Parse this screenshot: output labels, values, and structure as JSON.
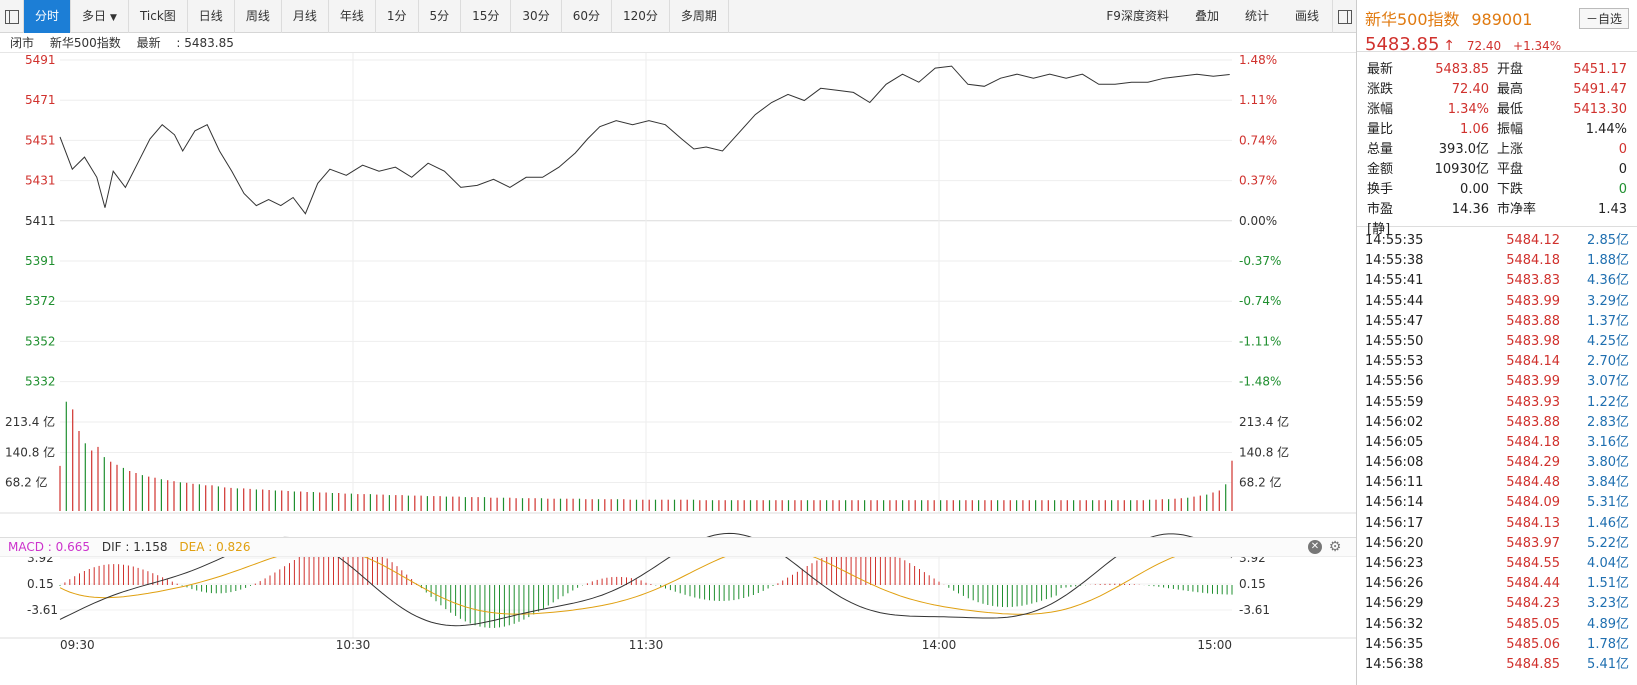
{
  "toolbar": {
    "items": [
      "分时",
      "多日",
      "Tick图",
      "日线",
      "周线",
      "月线",
      "年线",
      "1分",
      "5分",
      "15分",
      "30分",
      "60分",
      "120分",
      "多周期"
    ],
    "right_items": [
      "F9深度资料",
      "叠加",
      "统计",
      "画线"
    ]
  },
  "info": {
    "status": "闭市",
    "index_name": "新华500指数",
    "latest_label": "最新",
    "latest_value": "5483.85"
  },
  "chart_data": {
    "type": "line",
    "price_axis": {
      "ticks": [
        "5491",
        "5471",
        "5451",
        "5431",
        "5411",
        "5391",
        "5372",
        "5352",
        "5332"
      ],
      "pct_ticks": [
        "1.48%",
        "1.11%",
        "0.74%",
        "0.37%",
        "0.00%",
        "-0.37%",
        "-0.74%",
        "-1.11%",
        "-1.48%"
      ],
      "ylim": [
        5332,
        5491
      ],
      "prev_close": 5411
    },
    "volume_axis": {
      "ticks": [
        "213.4 亿",
        "140.8 亿",
        "68.2 亿"
      ],
      "unit": "亿"
    },
    "macd_axis": {
      "ticks": [
        "3.92",
        "0.15",
        "-3.61"
      ]
    },
    "time_ticks": [
      "09:30",
      "10:30",
      "11:30",
      "14:00",
      "15:00"
    ],
    "price_series": [
      [
        0,
        5453
      ],
      [
        0.03,
        5437
      ],
      [
        0.06,
        5443
      ],
      [
        0.09,
        5433
      ],
      [
        0.11,
        5418
      ],
      [
        0.13,
        5436
      ],
      [
        0.16,
        5428
      ],
      [
        0.19,
        5440
      ],
      [
        0.22,
        5452
      ],
      [
        0.25,
        5459
      ],
      [
        0.28,
        5454
      ],
      [
        0.3,
        5446
      ],
      [
        0.33,
        5456
      ],
      [
        0.36,
        5459
      ],
      [
        0.39,
        5446
      ],
      [
        0.42,
        5436
      ],
      [
        0.45,
        5425
      ],
      [
        0.48,
        5419
      ],
      [
        0.51,
        5422
      ],
      [
        0.54,
        5419
      ],
      [
        0.57,
        5423
      ],
      [
        0.6,
        5415
      ],
      [
        0.63,
        5430
      ],
      [
        0.66,
        5437
      ],
      [
        0.7,
        5434
      ],
      [
        0.74,
        5439
      ],
      [
        0.78,
        5436
      ],
      [
        0.82,
        5438
      ],
      [
        0.86,
        5433
      ],
      [
        0.9,
        5440
      ],
      [
        0.94,
        5436
      ],
      [
        0.98,
        5428
      ],
      [
        1.02,
        5429
      ],
      [
        1.06,
        5432
      ],
      [
        1.1,
        5428
      ],
      [
        1.14,
        5433
      ],
      [
        1.18,
        5433
      ],
      [
        1.22,
        5438
      ],
      [
        1.26,
        5445
      ],
      [
        1.29,
        5452
      ],
      [
        1.32,
        5458
      ],
      [
        1.36,
        5461
      ],
      [
        1.4,
        5459
      ],
      [
        1.44,
        5461
      ],
      [
        1.48,
        5459
      ],
      [
        1.52,
        5452
      ],
      [
        1.55,
        5447
      ],
      [
        1.58,
        5448
      ],
      [
        1.62,
        5446
      ],
      [
        1.66,
        5455
      ],
      [
        1.7,
        5464
      ],
      [
        1.74,
        5470
      ],
      [
        1.78,
        5474
      ],
      [
        1.82,
        5471
      ],
      [
        1.86,
        5477
      ],
      [
        1.9,
        5476
      ],
      [
        1.94,
        5475
      ],
      [
        1.98,
        5470
      ],
      [
        2.02,
        5479
      ],
      [
        2.06,
        5484
      ],
      [
        2.1,
        5480
      ],
      [
        2.14,
        5487
      ],
      [
        2.18,
        5488
      ],
      [
        2.22,
        5479
      ],
      [
        2.26,
        5478
      ],
      [
        2.3,
        5482
      ],
      [
        2.34,
        5484
      ],
      [
        2.38,
        5482
      ],
      [
        2.42,
        5484
      ],
      [
        2.46,
        5482
      ],
      [
        2.5,
        5484
      ],
      [
        2.54,
        5479
      ],
      [
        2.58,
        5479
      ],
      [
        2.62,
        5480
      ],
      [
        2.66,
        5480
      ],
      [
        2.7,
        5482
      ],
      [
        2.74,
        5483
      ],
      [
        2.78,
        5484
      ],
      [
        2.82,
        5483
      ],
      [
        2.86,
        5483.85
      ]
    ],
    "volume_series": [
      88,
      213,
      198,
      156,
      132,
      118,
      125,
      105,
      96,
      90,
      84,
      78,
      74,
      70,
      67,
      65,
      62,
      60,
      58,
      56,
      55,
      53,
      52,
      50,
      50,
      48,
      46,
      45,
      44,
      44,
      43,
      42,
      42,
      41,
      40,
      40,
      39,
      38,
      38,
      37,
      37,
      36,
      36,
      35,
      35,
      34,
      34,
      33,
      33,
      33,
      32,
      32,
      31,
      31,
      31,
      30,
      30,
      30,
      29,
      29,
      29,
      28,
      28,
      28,
      27,
      27,
      27,
      27,
      26,
      26,
      26,
      26,
      25,
      25,
      25,
      25,
      25,
      24,
      24,
      24,
      24,
      24,
      24,
      23,
      23,
      23,
      23,
      23,
      23,
      23,
      22,
      22,
      22,
      22,
      22,
      22,
      22,
      22,
      22,
      22,
      22,
      21,
      21,
      21,
      21,
      21,
      21,
      21,
      21,
      21,
      21,
      21,
      21,
      21,
      21,
      21,
      21,
      21,
      21,
      21,
      21,
      21,
      21,
      21,
      21,
      21,
      21,
      21,
      21,
      21,
      21,
      21,
      21,
      21,
      21,
      21,
      21,
      21,
      21,
      21,
      21,
      21,
      21,
      21,
      21,
      21,
      21,
      21,
      21,
      21,
      21,
      21,
      21,
      21,
      21,
      21,
      21,
      21,
      21,
      21,
      21,
      21,
      21,
      21,
      21,
      21,
      21,
      21,
      21,
      21,
      21,
      21,
      22,
      22,
      23,
      23,
      24,
      25,
      26,
      28,
      30,
      32,
      36,
      40,
      52,
      98
    ],
    "macd": {
      "label": "MACD",
      "value": "0.665",
      "dif_label": "DIF",
      "dif": "1.158",
      "dea_label": "DEA",
      "dea": "0.826"
    },
    "colors": {
      "up": "#d0312d",
      "down": "#1f8f2f",
      "price_line": "#333333",
      "dif": "#333333",
      "dea": "#e0a010"
    }
  },
  "side": {
    "name": "新华500指数",
    "code": "989001",
    "fav": "自选",
    "fav_icon": "minus-icon",
    "last": "5483.85",
    "arrow": "↑",
    "change": "72.40",
    "change_pct": "+1.34%",
    "stats": [
      {
        "l1": "最新",
        "v1": "5483.85",
        "c1": "red",
        "l2": "开盘",
        "v2": "5451.17",
        "c2": "red"
      },
      {
        "l1": "涨跌",
        "v1": "72.40",
        "c1": "red",
        "l2": "最高",
        "v2": "5491.47",
        "c2": "red"
      },
      {
        "l1": "涨幅",
        "v1": "1.34%",
        "c1": "red",
        "l2": "最低",
        "v2": "5413.30",
        "c2": "red"
      },
      {
        "l1": "量比",
        "v1": "1.06",
        "c1": "red",
        "l2": "振幅",
        "v2": "1.44%",
        "c2": "black"
      },
      {
        "l1": "总量",
        "v1": "393.0亿",
        "c1": "black",
        "l2": "上涨",
        "v2": "0",
        "c2": "red"
      },
      {
        "l1": "金额",
        "v1": "10930亿",
        "c1": "black",
        "l2": "平盘",
        "v2": "0",
        "c2": "black"
      },
      {
        "l1": "换手",
        "v1": "0.00",
        "c1": "black",
        "l2": "下跌",
        "v2": "0",
        "c2": "green"
      },
      {
        "l1": "市盈[静]",
        "v1": "14.36",
        "c1": "black",
        "l2": "市净率",
        "v2": "1.43",
        "c2": "black"
      }
    ],
    "ticks": [
      {
        "t": "14:55:35",
        "p": "5484.12",
        "a": "2.85亿"
      },
      {
        "t": "14:55:38",
        "p": "5484.18",
        "a": "1.88亿"
      },
      {
        "t": "14:55:41",
        "p": "5483.83",
        "a": "4.36亿"
      },
      {
        "t": "14:55:44",
        "p": "5483.99",
        "a": "3.29亿"
      },
      {
        "t": "14:55:47",
        "p": "5483.88",
        "a": "1.37亿"
      },
      {
        "t": "14:55:50",
        "p": "5483.98",
        "a": "4.25亿"
      },
      {
        "t": "14:55:53",
        "p": "5484.14",
        "a": "2.70亿"
      },
      {
        "t": "14:55:56",
        "p": "5483.99",
        "a": "3.07亿"
      },
      {
        "t": "14:55:59",
        "p": "5483.93",
        "a": "1.22亿"
      },
      {
        "t": "14:56:02",
        "p": "5483.88",
        "a": "2.83亿"
      },
      {
        "t": "14:56:05",
        "p": "5484.18",
        "a": "3.16亿"
      },
      {
        "t": "14:56:08",
        "p": "5484.29",
        "a": "3.80亿"
      },
      {
        "t": "14:56:11",
        "p": "5484.48",
        "a": "3.84亿"
      },
      {
        "t": "14:56:14",
        "p": "5484.09",
        "a": "5.31亿"
      },
      {
        "t": "14:56:17",
        "p": "5484.13",
        "a": "1.46亿"
      },
      {
        "t": "14:56:20",
        "p": "5483.97",
        "a": "5.22亿"
      },
      {
        "t": "14:56:23",
        "p": "5484.55",
        "a": "4.04亿"
      },
      {
        "t": "14:56:26",
        "p": "5484.44",
        "a": "1.51亿"
      },
      {
        "t": "14:56:29",
        "p": "5484.23",
        "a": "3.23亿"
      },
      {
        "t": "14:56:32",
        "p": "5485.05",
        "a": "4.89亿"
      },
      {
        "t": "14:56:35",
        "p": "5485.06",
        "a": "1.78亿"
      },
      {
        "t": "14:56:38",
        "p": "5484.85",
        "a": "5.41亿"
      }
    ]
  }
}
